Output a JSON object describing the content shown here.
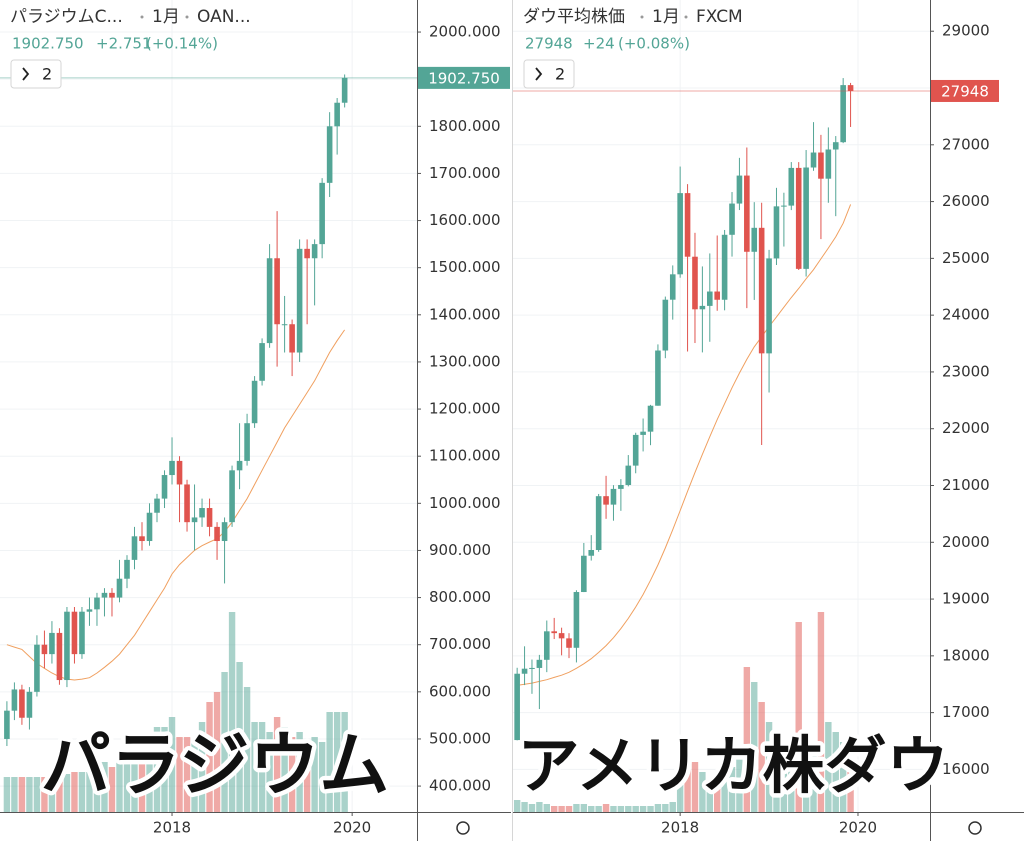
{
  "chart_data": [
    {
      "type": "candlestick",
      "title": "パラジウムC...",
      "interval": "1月",
      "source": "OAN...",
      "last_price": {
        "value": 1902.75,
        "label": "1902.750"
      },
      "change": "+2.751",
      "change_pct": "(+0.14%)",
      "indicator_count": "2",
      "overlay": "パラジウム",
      "up_color": "#53a596",
      "down_color": "#e0544e",
      "ma_color": "#f0a060",
      "x": [
        "2016-03",
        "2016-04",
        "2016-05",
        "2016-06",
        "2016-07",
        "2016-08",
        "2016-09",
        "2016-10",
        "2016-11",
        "2016-12",
        "2017-01",
        "2017-02",
        "2017-03",
        "2017-04",
        "2017-05",
        "2017-06",
        "2017-07",
        "2017-08",
        "2017-09",
        "2017-10",
        "2017-11",
        "2017-12",
        "2018-01",
        "2018-02",
        "2018-03",
        "2018-04",
        "2018-05",
        "2018-06",
        "2018-07",
        "2018-08",
        "2018-09",
        "2018-10",
        "2018-11",
        "2018-12",
        "2019-01",
        "2019-02",
        "2019-03",
        "2019-04",
        "2019-05",
        "2019-06",
        "2019-07",
        "2019-08",
        "2019-09",
        "2019-10",
        "2019-11",
        "2019-12"
      ],
      "open": [
        500,
        560,
        605,
        545,
        600,
        700,
        680,
        725,
        625,
        770,
        680,
        770,
        775,
        800,
        810,
        800,
        840,
        880,
        930,
        920,
        980,
        1010,
        1060,
        1090,
        1040,
        960,
        970,
        990,
        950,
        920,
        960,
        1070,
        1090,
        1170,
        1260,
        1340,
        1520,
        1380,
        1380,
        1320,
        1540,
        1520,
        1550,
        1680,
        1800,
        1850
      ],
      "high": [
        580,
        620,
        615,
        610,
        720,
        730,
        750,
        735,
        780,
        780,
        780,
        800,
        810,
        820,
        820,
        880,
        890,
        950,
        960,
        1000,
        1020,
        1070,
        1140,
        1100,
        1050,
        1040,
        1010,
        1010,
        960,
        970,
        1080,
        1170,
        1190,
        1270,
        1350,
        1550,
        1620,
        1440,
        1390,
        1560,
        1560,
        1560,
        1690,
        1830,
        1860,
        1910
      ],
      "low": [
        485,
        540,
        530,
        520,
        590,
        650,
        660,
        615,
        610,
        660,
        670,
        740,
        740,
        760,
        760,
        790,
        820,
        860,
        900,
        910,
        960,
        990,
        1040,
        960,
        940,
        900,
        950,
        930,
        880,
        830,
        950,
        1030,
        1080,
        1160,
        1250,
        1330,
        1290,
        1320,
        1270,
        1300,
        1380,
        1420,
        1520,
        1650,
        1740,
        1840
      ],
      "close": [
        560,
        605,
        545,
        600,
        700,
        680,
        725,
        625,
        770,
        680,
        770,
        775,
        800,
        810,
        800,
        840,
        880,
        930,
        920,
        980,
        1010,
        1060,
        1090,
        1040,
        960,
        970,
        990,
        950,
        920,
        960,
        1070,
        1090,
        1170,
        1260,
        1340,
        1520,
        1380,
        1380,
        1320,
        1540,
        1520,
        1550,
        1680,
        1800,
        1850,
        1902.75
      ],
      "ma": [
        700,
        695,
        690,
        675,
        660,
        650,
        640,
        632,
        627,
        625,
        627,
        630,
        640,
        652,
        665,
        680,
        700,
        720,
        745,
        770,
        795,
        820,
        850,
        870,
        885,
        900,
        910,
        918,
        925,
        940,
        960,
        985,
        1010,
        1040,
        1070,
        1100,
        1130,
        1160,
        1185,
        1210,
        1235,
        1260,
        1290,
        1320,
        1345,
        1368
      ],
      "volume": [
        35,
        35,
        35,
        35,
        35,
        35,
        35,
        35,
        38,
        40,
        40,
        40,
        45,
        50,
        45,
        50,
        55,
        60,
        65,
        70,
        85,
        85,
        95,
        75,
        75,
        70,
        90,
        110,
        120,
        140,
        200,
        150,
        125,
        90,
        90,
        80,
        95,
        85,
        75,
        80,
        70,
        75,
        70,
        100,
        100,
        100
      ],
      "xlim": [
        2016.09,
        2020.72
      ],
      "xticks": [
        2018,
        2020
      ],
      "ylim": [
        345,
        2068
      ],
      "yticks": [
        {
          "value": 400,
          "label": "400.000"
        },
        {
          "value": 500,
          "label": "500.000"
        },
        {
          "value": 600,
          "label": "600.000"
        },
        {
          "value": 700,
          "label": "700.000"
        },
        {
          "value": 800,
          "label": "800.000"
        },
        {
          "value": 900,
          "label": "900.000"
        },
        {
          "value": 1000,
          "label": "1000.000"
        },
        {
          "value": 1100,
          "label": "1100.000"
        },
        {
          "value": 1200,
          "label": "1200.000"
        },
        {
          "value": 1300,
          "label": "1300.000"
        },
        {
          "value": 1400,
          "label": "1400.000"
        },
        {
          "value": 1500,
          "label": "1500.000"
        },
        {
          "value": 1600,
          "label": "1600.000"
        },
        {
          "value": 1700,
          "label": "1700.000"
        },
        {
          "value": 1800,
          "label": "1800.000"
        },
        {
          "value": 1900,
          "label": "1900.000"
        },
        {
          "value": 2000,
          "label": "2000.000"
        }
      ],
      "grid": true
    },
    {
      "type": "candlestick",
      "title": "ダウ平均株価",
      "interval": "1月",
      "source": "FXCM",
      "last_price": 27948,
      "change": "+24",
      "change_pct": "(+0.08%)",
      "indicator_count": "2",
      "overlay": "アメリカ株ダウ",
      "up_color": "#53a596",
      "down_color": "#e0544e",
      "ma_color": "#f0a060",
      "x": [
        "2016-03",
        "2016-04",
        "2016-05",
        "2016-06",
        "2016-07",
        "2016-08",
        "2016-09",
        "2016-10",
        "2016-11",
        "2016-12",
        "2017-01",
        "2017-02",
        "2017-03",
        "2017-04",
        "2017-05",
        "2017-06",
        "2017-07",
        "2017-08",
        "2017-09",
        "2017-10",
        "2017-11",
        "2017-12",
        "2018-01",
        "2018-02",
        "2018-03",
        "2018-04",
        "2018-05",
        "2018-06",
        "2018-07",
        "2018-08",
        "2018-09",
        "2018-10",
        "2018-11",
        "2018-12",
        "2019-01",
        "2019-02",
        "2019-03",
        "2019-04",
        "2019-05",
        "2019-06",
        "2019-07",
        "2019-08",
        "2019-09",
        "2019-10",
        "2019-11",
        "2019-12"
      ],
      "open": [
        16517,
        17685,
        17774,
        17787,
        17930,
        18432,
        18400,
        18308,
        18142,
        19124,
        19763,
        19864,
        20812,
        20663,
        20940,
        21009,
        21350,
        21891,
        21948,
        22405,
        23377,
        24272,
        24719,
        26149,
        25029,
        24103,
        24163,
        24416,
        24271,
        25415,
        25965,
        26458,
        25116,
        25538,
        23327,
        24999,
        25916,
        25929,
        26593,
        24815,
        26600,
        26864,
        26403,
        26917,
        27046,
        28051
      ],
      "high": [
        17790,
        18168,
        17935,
        18017,
        18622,
        18668,
        18496,
        18399,
        19155,
        19988,
        20126,
        20851,
        21170,
        21006,
        21112,
        21536,
        21929,
        22180,
        22420,
        23485,
        24327,
        24876,
        26617,
        26307,
        25450,
        24858,
        25087,
        25403,
        25500,
        26168,
        26770,
        26952,
        25990,
        25980,
        25149,
        26242,
        26156,
        26696,
        26695,
        26908,
        27399,
        27175,
        27306,
        27154,
        28175,
        28090
      ],
      "low": [
        16512,
        17485,
        17331,
        17063,
        17713,
        18296,
        18009,
        17960,
        17884,
        19123,
        19678,
        19832,
        20413,
        20380,
        20554,
        20985,
        21215,
        21600,
        21710,
        22405,
        23242,
        23921,
        24659,
        23360,
        23509,
        23344,
        23531,
        24077,
        24085,
        25031,
        25851,
        24123,
        24268,
        21713,
        22638,
        24883,
        25208,
        25850,
        24795,
        24680,
        26542,
        25339,
        25979,
        25743,
        27029,
        27314
      ],
      "close": [
        17685,
        17774,
        17787,
        17930,
        18432,
        18400,
        18308,
        18142,
        19124,
        19763,
        19864,
        20812,
        20663,
        20940,
        21009,
        21350,
        21891,
        21948,
        22405,
        23377,
        24272,
        24719,
        26149,
        25029,
        24103,
        24163,
        24416,
        24271,
        25415,
        25965,
        26458,
        25116,
        25538,
        23327,
        24999,
        25916,
        25929,
        26593,
        24815,
        26600,
        26864,
        26403,
        26917,
        27046,
        28051,
        27948
      ],
      "ma": [
        17480,
        17500,
        17520,
        17550,
        17580,
        17620,
        17660,
        17710,
        17780,
        17860,
        17950,
        18060,
        18180,
        18320,
        18480,
        18660,
        18860,
        19080,
        19330,
        19600,
        19900,
        20220,
        20560,
        20900,
        21230,
        21550,
        21860,
        22160,
        22440,
        22720,
        22980,
        23220,
        23440,
        23620,
        23800,
        23970,
        24140,
        24310,
        24470,
        24640,
        24800,
        24990,
        25180,
        25380,
        25620,
        25950
      ],
      "volume": [
        12,
        10,
        8,
        10,
        8,
        6,
        6,
        6,
        8,
        8,
        6,
        6,
        8,
        6,
        6,
        6,
        6,
        6,
        6,
        8,
        8,
        10,
        30,
        60,
        50,
        40,
        30,
        30,
        40,
        45,
        55,
        145,
        130,
        110,
        90,
        60,
        60,
        50,
        190,
        80,
        70,
        200,
        90,
        80,
        70,
        40
      ],
      "xlim": [
        2016.12,
        2020.81
      ],
      "xticks": [
        2018,
        2020
      ],
      "ylim": [
        15250,
        29550
      ],
      "yticks": [
        16000,
        17000,
        18000,
        19000,
        20000,
        21000,
        22000,
        23000,
        24000,
        25000,
        26000,
        27000,
        28000,
        29000
      ],
      "grid": true
    }
  ]
}
